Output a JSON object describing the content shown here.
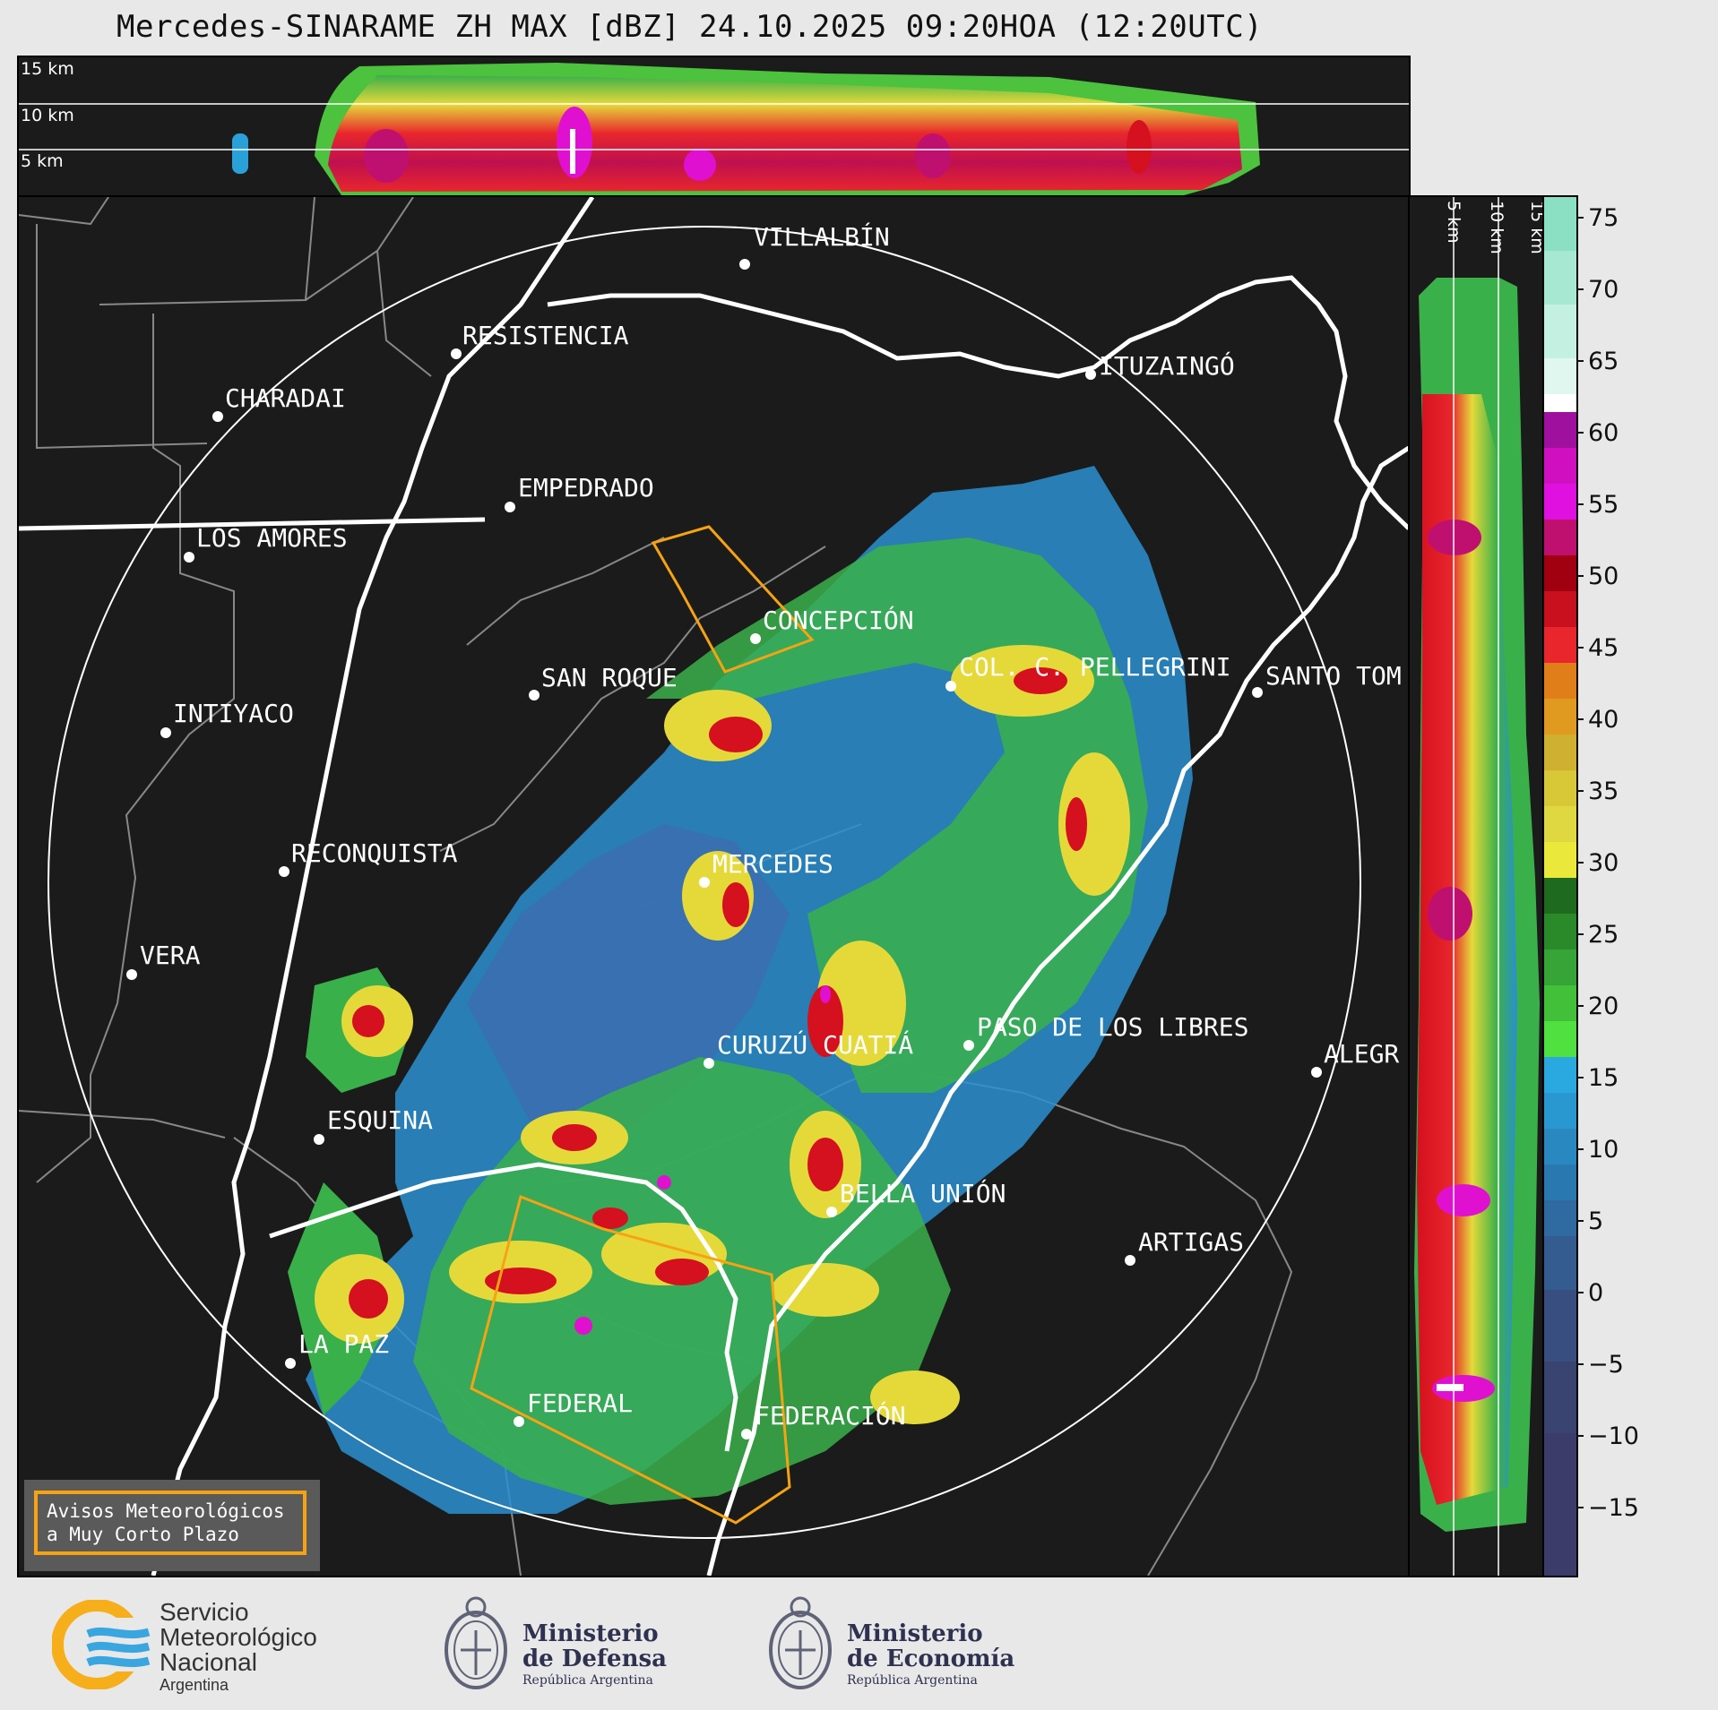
{
  "title": "Mercedes-SINARAME ZH MAX [dBZ] 24.10.2025 09:20HOA (12:20UTC)",
  "top_panel": {
    "height_labels": [
      "15 km",
      "10 km",
      "5 km"
    ]
  },
  "side_panel": {
    "height_labels": [
      "5 km",
      "10 km",
      "15 km"
    ]
  },
  "map": {
    "cities": [
      {
        "name": "VILLALBÍN"
      },
      {
        "name": "RESISTENCIA"
      },
      {
        "name": "CHARADAI"
      },
      {
        "name": "ITUZAINGÓ"
      },
      {
        "name": "EMPEDRADO"
      },
      {
        "name": "LOS AMORES"
      },
      {
        "name": "CONCEPCIÓN"
      },
      {
        "name": "SAN ROQUE"
      },
      {
        "name": "COL. C. PELLEGRINI"
      },
      {
        "name": "SANTO TOM"
      },
      {
        "name": "INTIYACO"
      },
      {
        "name": "MERCEDES"
      },
      {
        "name": "RECONQUISTA"
      },
      {
        "name": "VERA"
      },
      {
        "name": "CURUZÚ CUATIÁ"
      },
      {
        "name": "PASO DE LOS LIBRES"
      },
      {
        "name": "ALEGR"
      },
      {
        "name": "ESQUINA"
      },
      {
        "name": "BELLA UNIÓN"
      },
      {
        "name": "ARTIGAS"
      },
      {
        "name": "LA PAZ"
      },
      {
        "name": "FEDERAL"
      },
      {
        "name": "FEDERACIÓN"
      }
    ],
    "legend_box": {
      "line1": "Avisos Meteorológicos",
      "line2": "a Muy Corto Plazo"
    },
    "warning_color": "#f6a313"
  },
  "colorbar": {
    "unit": "dBZ",
    "ticks": [
      "75",
      "70",
      "65",
      "60",
      "55",
      "50",
      "45",
      "40",
      "35",
      "30",
      "25",
      "20",
      "15",
      "10",
      "5",
      "0",
      "−5",
      "−10",
      "−15"
    ],
    "range": [
      -20,
      77
    ]
  },
  "logos": {
    "smn": {
      "line1": "Servicio",
      "line2": "Meteorológico",
      "line3": "Nacional",
      "line4": "Argentina"
    },
    "defensa": {
      "line1": "Ministerio",
      "line2": "de Defensa",
      "line3": "República Argentina"
    },
    "economia": {
      "line1": "Ministerio",
      "line2": "de Economía",
      "line3": "República Argentina"
    }
  }
}
